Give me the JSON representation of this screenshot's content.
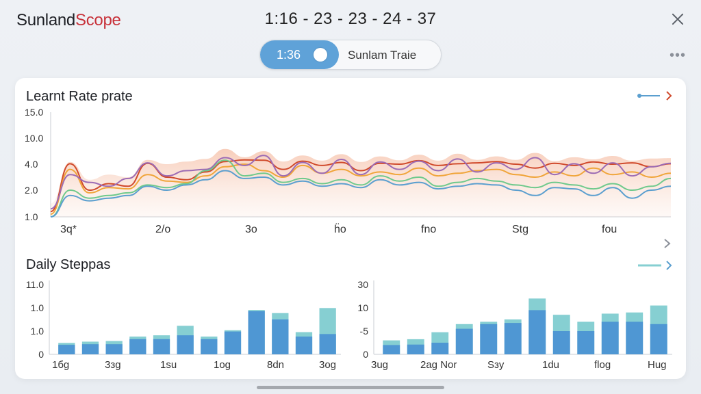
{
  "app": {
    "brand_part1": "Sunland",
    "brand_part2": "Scope",
    "clock": "1:16 - 23 - 23 - 24 - 37"
  },
  "toggle": {
    "left_label": "1:36",
    "right_label": "Sunlam Traie",
    "state": "on"
  },
  "colors": {
    "accent": "#5fa2d8",
    "brand_red": "#c8323a",
    "bar_dark": "#4f97d3",
    "bar_light": "#86cfd2"
  },
  "learn_rate": {
    "title": "Learnt Rate prate",
    "y_ticks": [
      "15.0",
      "10.0",
      "4.0",
      "2.0",
      "1.0"
    ],
    "x_ticks": [
      "3q*",
      "2/o",
      "3o",
      "ḧo",
      "fno",
      "Stg",
      "fou"
    ],
    "chart_data": {
      "type": "line",
      "ylim_labels": [
        "1.0",
        "15.0"
      ],
      "series": [
        {
          "color": "#d04a2c",
          "values": [
            1.2,
            4.1,
            2.0,
            2.5,
            2.3,
            4.2,
            3.0,
            2.8,
            3.4,
            4.6,
            5.0,
            4.9,
            3.6,
            4.7,
            3.9,
            4.4,
            3.5,
            4.2,
            4.0,
            4.8,
            3.9,
            4.1,
            4.3,
            4.6,
            4.0,
            3.7,
            4.2,
            3.9,
            4.5,
            4.0,
            4.3,
            3.8,
            4.1
          ]
        },
        {
          "color": "#f0a53a",
          "values": [
            1.1,
            3.6,
            1.9,
            2.2,
            2.1,
            3.2,
            2.7,
            2.6,
            3.1,
            3.8,
            4.0,
            3.5,
            3.0,
            3.9,
            3.3,
            3.6,
            3.1,
            3.4,
            3.2,
            3.7,
            3.1,
            3.3,
            3.5,
            3.6,
            3.2,
            3.0,
            3.4,
            3.1,
            3.7,
            3.2,
            3.4,
            3.0,
            3.3
          ]
        },
        {
          "color": "#9c6bb4",
          "values": [
            1.3,
            3.2,
            2.6,
            2.3,
            2.9,
            4.3,
            3.1,
            3.5,
            3.6,
            5.5,
            3.9,
            6.0,
            3.1,
            4.4,
            3.3,
            5.1,
            3.2,
            4.5,
            3.6,
            4.7,
            3.5,
            5.2,
            3.4,
            4.3,
            3.6,
            5.5,
            3.2,
            4.1,
            3.3,
            4.3,
            3.1,
            3.8,
            4.2
          ]
        },
        {
          "color": "#6fc98c",
          "values": [
            1.0,
            2.0,
            1.7,
            1.8,
            1.9,
            2.4,
            2.2,
            2.5,
            3.5,
            4.9,
            3.1,
            3.3,
            2.6,
            2.9,
            2.5,
            2.8,
            2.4,
            3.1,
            2.7,
            3.0,
            2.3,
            2.6,
            2.9,
            2.7,
            2.4,
            2.2,
            2.6,
            2.4,
            2.1,
            2.5,
            2.0,
            2.3,
            2.9
          ]
        },
        {
          "color": "#5b9fcf",
          "values": [
            1.0,
            1.8,
            1.6,
            1.7,
            1.8,
            2.3,
            2.0,
            2.4,
            2.8,
            3.5,
            2.9,
            3.0,
            2.4,
            2.7,
            2.3,
            2.5,
            2.2,
            2.8,
            2.4,
            2.6,
            2.1,
            2.3,
            2.5,
            2.4,
            2.0,
            1.8,
            2.2,
            2.1,
            1.8,
            2.2,
            1.7,
            2.0,
            2.3
          ]
        }
      ],
      "band_upper": [
        1.5,
        4.5,
        2.8,
        3.2,
        3.0,
        5.0,
        4.0,
        4.6,
        5.2,
        7.5,
        5.6,
        7.0,
        4.6,
        6.0,
        4.8,
        6.3,
        4.5,
        5.8,
        4.9,
        6.2,
        4.8,
        6.4,
        5.0,
        5.8,
        5.0,
        6.6,
        4.7,
        5.6,
        5.1,
        5.9,
        4.8,
        5.3,
        5.4
      ]
    }
  },
  "daily_steps": {
    "title": "Daily Steppas",
    "left": {
      "y_ticks": [
        "11.0",
        "1.0",
        "1.0",
        "0"
      ],
      "x_ticks": [
        "1бg",
        "3зg",
        "1su",
        "1og",
        "8dn",
        "3og"
      ],
      "chart_data": {
        "type": "bar",
        "ylim": [
          0,
          11
        ],
        "categories": [
          "1",
          "2",
          "3",
          "4",
          "5",
          "6",
          "7",
          "8",
          "9",
          "10",
          "11",
          "12"
        ],
        "series": [
          {
            "name": "base",
            "values": [
              1.5,
              1.6,
              1.6,
              2.4,
              2.4,
              3.0,
              2.4,
              3.6,
              6.8,
              5.5,
              2.8,
              3.2
            ]
          },
          {
            "name": "top",
            "values": [
              1.8,
              2.0,
              2.1,
              2.8,
              3.0,
              4.5,
              2.8,
              3.8,
              7.0,
              6.5,
              3.5,
              7.3
            ]
          }
        ]
      }
    },
    "right": {
      "y_ticks": [
        "30",
        "10",
        "-5",
        "0"
      ],
      "x_ticks": [
        "3ug",
        "2ag Nor",
        "Sзy",
        "1du",
        "flog",
        "Hug"
      ],
      "chart_data": {
        "type": "bar",
        "ylim": [
          0,
          30
        ],
        "categories": [
          "1",
          "2",
          "3",
          "4",
          "5",
          "6",
          "7",
          "8",
          "9",
          "10",
          "11",
          "12"
        ],
        "series": [
          {
            "name": "base",
            "values": [
              4.0,
              4.2,
              5.0,
              11.0,
              13.0,
              13.5,
              19.0,
              10.0,
              10.0,
              14.0,
              14.0,
              13.0
            ]
          },
          {
            "name": "top",
            "values": [
              6.0,
              6.5,
              9.5,
              13.0,
              14.0,
              15.0,
              24.0,
              17.0,
              14.0,
              17.5,
              18.0,
              21.0
            ]
          }
        ]
      }
    }
  }
}
